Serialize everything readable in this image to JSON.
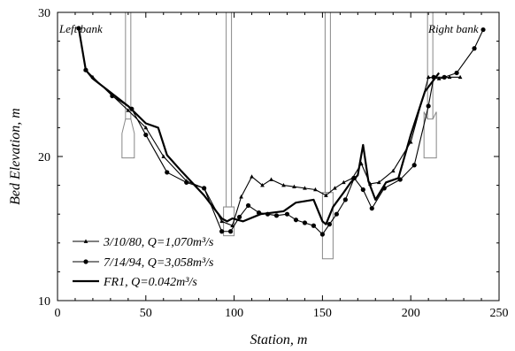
{
  "chart_data": {
    "type": "line",
    "xlabel": "Station, m",
    "ylabel": "Bed Elevation, m",
    "xlim": [
      0,
      250
    ],
    "ylim": [
      10,
      30
    ],
    "x_ticks": [
      0,
      50,
      100,
      150,
      200,
      250
    ],
    "y_ticks": [
      10,
      20,
      30
    ],
    "grid": false,
    "legend_position": "bottom-left",
    "annotations": [
      {
        "text": "Left bank",
        "x": 13,
        "y": 28.9
      },
      {
        "text": "Right bank",
        "x": 212,
        "y": 28.9
      }
    ],
    "series": [
      {
        "name": "3/10/80, Q=1,070m³/s",
        "style": "line-triangle",
        "x": [
          12,
          16,
          20,
          40,
          50,
          60,
          73,
          83,
          93,
          99,
          104,
          110,
          116,
          121,
          128,
          134,
          140,
          146,
          152,
          157,
          162,
          167,
          172,
          177,
          182,
          190,
          200,
          210,
          216,
          222,
          228
        ],
        "y": [
          28.9,
          26.0,
          25.5,
          23.2,
          22.0,
          20.0,
          18.3,
          17.8,
          15.5,
          15.2,
          17.2,
          18.6,
          18.0,
          18.4,
          18.0,
          17.9,
          17.8,
          17.7,
          17.3,
          17.8,
          18.2,
          18.5,
          19.5,
          18.1,
          18.2,
          19.0,
          21.0,
          25.5,
          25.4,
          25.5,
          25.5
        ]
      },
      {
        "name": "7/14/94, Q=3,058m³/s",
        "style": "line-circle",
        "x": [
          12,
          16,
          31,
          42,
          50,
          62,
          73,
          83,
          93,
          98,
          103,
          108,
          114,
          119,
          124,
          130,
          135,
          140,
          145,
          150,
          154,
          158,
          163,
          168,
          173,
          178,
          185,
          194,
          202,
          210,
          213,
          219,
          226,
          236,
          241
        ],
        "y": [
          28.9,
          26.0,
          24.2,
          23.3,
          21.5,
          18.9,
          18.2,
          17.8,
          14.8,
          14.8,
          15.8,
          16.6,
          16.1,
          16.0,
          15.9,
          16.0,
          15.6,
          15.4,
          15.2,
          14.6,
          15.3,
          16.0,
          17.0,
          18.5,
          17.7,
          16.4,
          17.8,
          18.4,
          19.4,
          23.5,
          25.5,
          25.5,
          25.8,
          27.5,
          28.8
        ]
      },
      {
        "name": "FR1, Q=0.042m³/s",
        "style": "thick-line",
        "x": [
          12,
          16,
          20,
          40,
          50,
          57,
          62,
          70,
          83,
          93,
          96,
          99,
          105,
          115,
          128,
          135,
          145,
          150,
          152,
          156,
          162,
          166,
          170,
          173,
          176,
          180,
          186,
          193,
          200,
          208,
          216
        ],
        "y": [
          28.9,
          26.0,
          25.4,
          23.5,
          22.3,
          22.0,
          20.1,
          19.0,
          17.3,
          15.7,
          15.5,
          15.7,
          15.5,
          16.0,
          16.2,
          16.8,
          17.0,
          15.5,
          15.3,
          16.5,
          17.5,
          18.2,
          18.7,
          20.8,
          18.3,
          17.0,
          18.2,
          18.5,
          21.5,
          24.5,
          25.8
        ]
      }
    ]
  }
}
